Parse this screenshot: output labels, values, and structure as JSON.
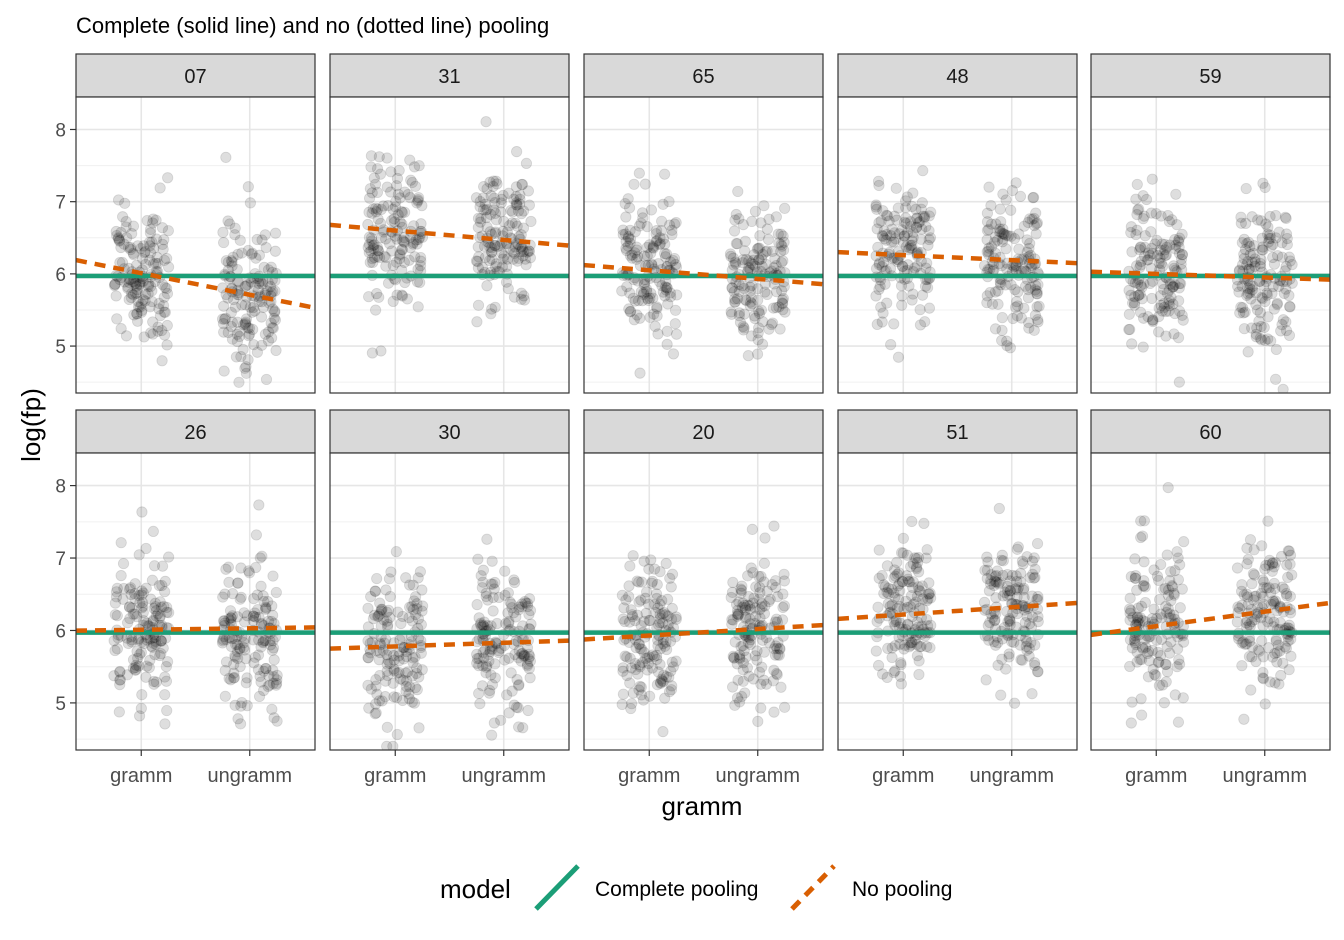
{
  "chart_data": {
    "type": "scatter",
    "title": "Complete (solid line) and no (dotted line) pooling",
    "xlabel": "gramm",
    "ylabel": "log(fp)",
    "categories": [
      "gramm",
      "ungramm"
    ],
    "ylim": [
      4.35,
      8.45
    ],
    "y_ticks": [
      5,
      6,
      7,
      8
    ],
    "grid": true,
    "legend": {
      "title": "model",
      "position": "bottom",
      "entries": [
        {
          "label": "Complete pooling",
          "color": "#1b9e77",
          "dash": "solid"
        },
        {
          "label": "No pooling",
          "color": "#d95f02",
          "dash": "dashed"
        }
      ]
    },
    "complete_pooling_value": 5.97,
    "panels": [
      {
        "label": "07",
        "no_pooling": [
          6.01,
          5.71
        ]
      },
      {
        "label": "31",
        "no_pooling": [
          6.6,
          6.47
        ]
      },
      {
        "label": "65",
        "no_pooling": [
          6.05,
          5.93
        ]
      },
      {
        "label": "48",
        "no_pooling": [
          6.26,
          6.19
        ]
      },
      {
        "label": "59",
        "no_pooling": [
          6.0,
          5.95
        ]
      },
      {
        "label": "26",
        "no_pooling": [
          6.01,
          6.03
        ]
      },
      {
        "label": "30",
        "no_pooling": [
          5.78,
          5.83
        ]
      },
      {
        "label": "20",
        "no_pooling": [
          5.93,
          6.02
        ]
      },
      {
        "label": "51",
        "no_pooling": [
          6.22,
          6.32
        ]
      },
      {
        "label": "60",
        "no_pooling": [
          6.06,
          6.26
        ]
      }
    ],
    "point_style": {
      "color": "#000000",
      "opacity": 0.13
    }
  }
}
